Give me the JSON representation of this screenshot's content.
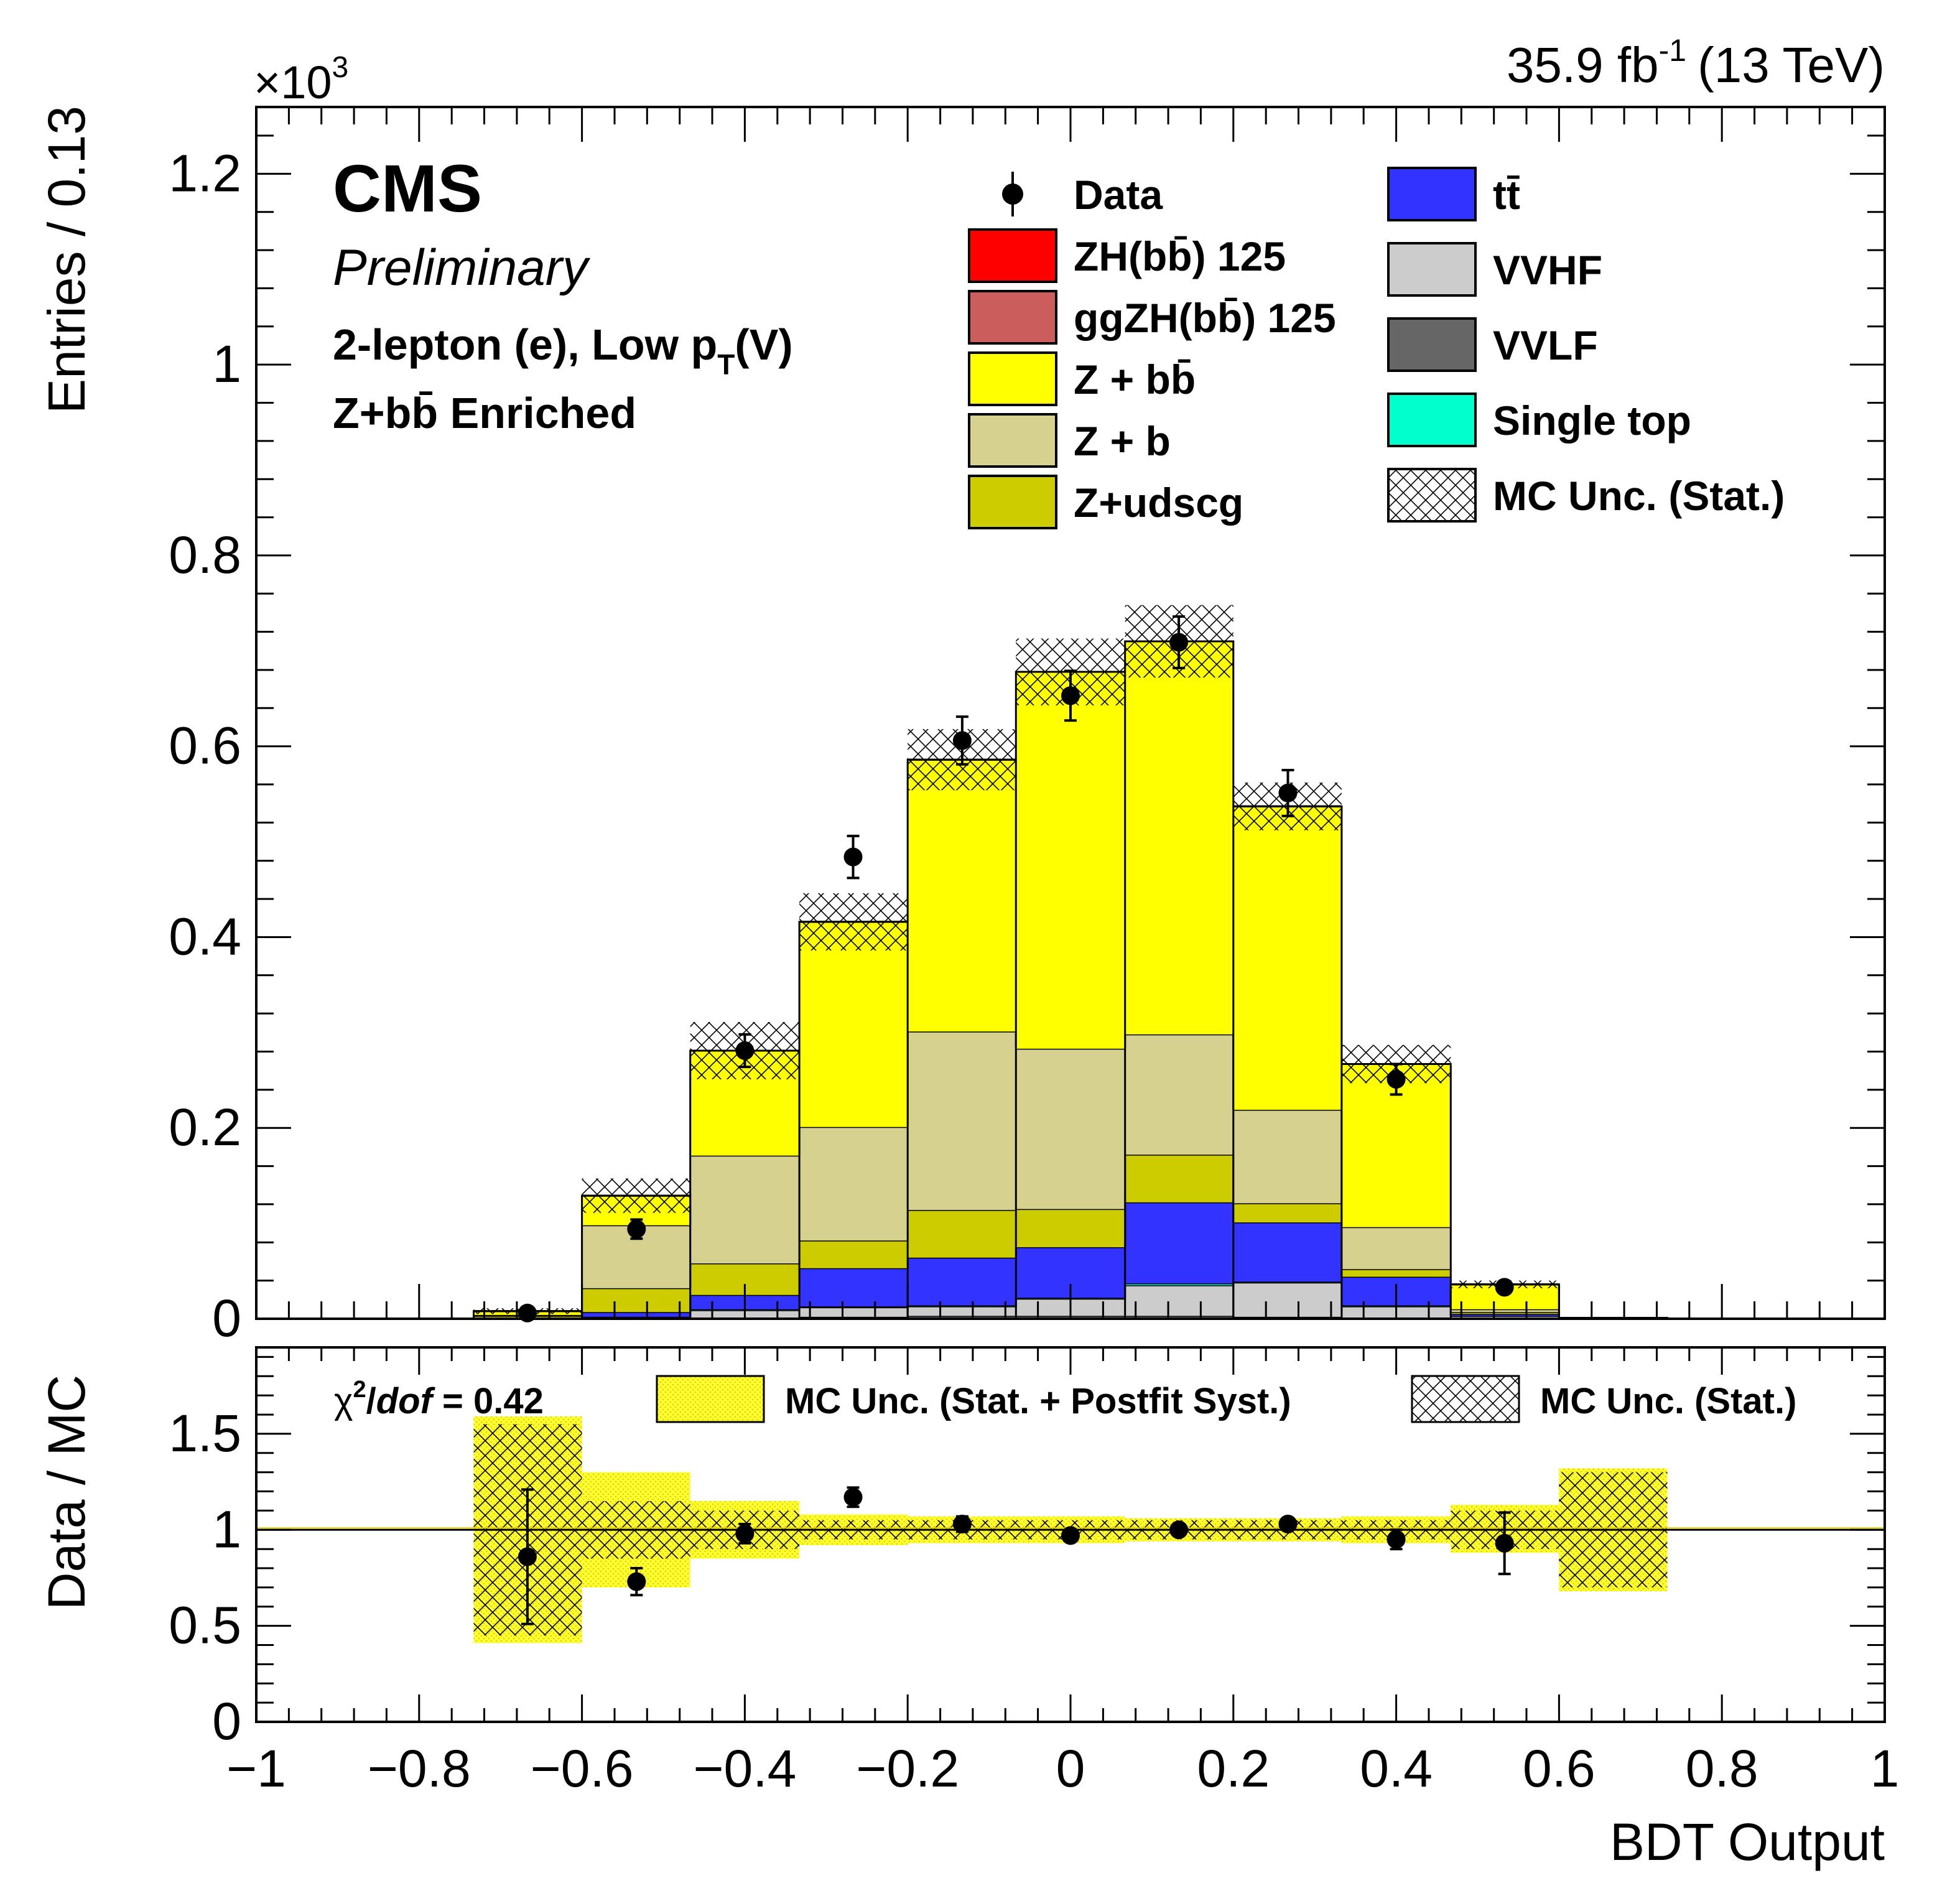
{
  "header": {
    "exponent_base": "×10",
    "exponent_power": "3",
    "lumi_value": "35.9 fb",
    "lumi_power": "-1",
    "lumi_energy": "(13 TeV)"
  },
  "labels": {
    "cms": "CMS",
    "preliminary": "Preliminary",
    "channel_main": "2-lepton (e), Low p",
    "channel_sub": "T",
    "channel_tail": "(V)",
    "region": "Z+bb̄ Enriched"
  },
  "legend": [
    {
      "label": "Data",
      "color": "#000000"
    },
    {
      "label": "ZH(bb̄) 125",
      "color": "#ff0000"
    },
    {
      "label": "ggZH(bb̄) 125",
      "color": "#cc5d5d"
    },
    {
      "label": "Z + bb̄",
      "color": "#ffff00"
    },
    {
      "label": "Z + b",
      "color": "#d6d18f"
    },
    {
      "label": "Z+udscg",
      "color": "#cccc00"
    },
    {
      "label": "tt̄",
      "color": "#3333ff"
    },
    {
      "label": "VVHF",
      "color": "#cccccc"
    },
    {
      "label": "VVLF",
      "color": "#666666"
    },
    {
      "label": "Single top",
      "color": "#00ffcc"
    },
    {
      "label": "MC Unc. (Stat.)",
      "color": "#ffffff"
    }
  ],
  "ratio_legend": {
    "chi2_sym": "χ",
    "chi2_pow": "2",
    "chi2_slash": "/",
    "chi2_dof": "dof",
    "chi2_value": " = 0.42",
    "band_syst": "MC Unc. (Stat. + Postfit Syst.)",
    "band_stat": "MC Unc. (Stat.)"
  },
  "chart_data": [
    {
      "type": "bar",
      "panel": "main",
      "stacked": true,
      "bin_edges": [
        -1,
        -0.867,
        -0.733,
        -0.6,
        -0.467,
        -0.333,
        -0.2,
        -0.067,
        0.067,
        0.2,
        0.333,
        0.467,
        0.6,
        0.733,
        0.867,
        1
      ],
      "ylabel": "Entries / 0.13",
      "xlabel": "BDT Output",
      "ylim": [
        0,
        1.27
      ],
      "y_scale_label": "×10^3",
      "yticks": [
        0,
        0.2,
        0.4,
        0.6,
        0.8,
        1,
        1.2
      ],
      "ytick_labels": [
        "0",
        "0.2",
        "0.4",
        "0.6",
        "0.8",
        "1",
        "1.2"
      ],
      "series": [
        {
          "name": "VVLF",
          "color": "#666666",
          "values": [
            0,
            0,
            0,
            0,
            0.001,
            0.002,
            0.003,
            0.003,
            0.003,
            0.002,
            0.001,
            0,
            0,
            0,
            0
          ]
        },
        {
          "name": "VVHF",
          "color": "#cccccc",
          "values": [
            0,
            0,
            0,
            0.002,
            0.008,
            0.01,
            0.01,
            0.018,
            0.032,
            0.036,
            0.012,
            0.003,
            0,
            0,
            0
          ]
        },
        {
          "name": "Single top",
          "color": "#00ffcc",
          "values": [
            0,
            0,
            0,
            0,
            0.001,
            0.001,
            0.001,
            0.001,
            0.002,
            0.001,
            0.001,
            0,
            0,
            0,
            0
          ]
        },
        {
          "name": "tt̄",
          "color": "#3333ff",
          "values": [
            0,
            0,
            0,
            0.005,
            0.015,
            0.04,
            0.05,
            0.053,
            0.085,
            0.062,
            0.03,
            0.002,
            0,
            0,
            0
          ]
        },
        {
          "name": "Z+udscg",
          "color": "#cccc00",
          "values": [
            0,
            0,
            0.003,
            0.025,
            0.033,
            0.029,
            0.05,
            0.04,
            0.05,
            0.02,
            0.008,
            0.002,
            0,
            0,
            0
          ]
        },
        {
          "name": "Z + b",
          "color": "#d6d18f",
          "values": [
            0,
            0,
            0.001,
            0.066,
            0.113,
            0.119,
            0.187,
            0.168,
            0.126,
            0.098,
            0.044,
            0.003,
            0,
            0,
            0
          ]
        },
        {
          "name": "Z + bb̄",
          "color": "#ffff00",
          "values": [
            0,
            0,
            0.004,
            0.031,
            0.11,
            0.215,
            0.285,
            0.395,
            0.412,
            0.318,
            0.171,
            0.026,
            0.001,
            0,
            0
          ]
        },
        {
          "name": "ggZH(bb̄) 125",
          "color": "#cc5d5d",
          "values": [
            0,
            0,
            0,
            0,
            0,
            0,
            0,
            0,
            0,
            0,
            0,
            0,
            0,
            0,
            0
          ]
        },
        {
          "name": "ZH(bb̄) 125",
          "color": "#ff0000",
          "values": [
            0,
            0,
            0,
            0,
            0,
            0,
            0,
            0,
            0,
            0,
            0,
            0,
            0,
            0,
            0
          ]
        }
      ],
      "mc_stat_unc": [
        0,
        0,
        0.003,
        0.018,
        0.03,
        0.03,
        0.032,
        0.035,
        0.038,
        0.025,
        0.02,
        0.004,
        0,
        0,
        0
      ],
      "data": {
        "x": [
          -0.667,
          -0.533,
          -0.4,
          -0.267,
          -0.133,
          0,
          0.133,
          0.267,
          0.4,
          0.533
        ],
        "y": [
          0.006,
          0.094,
          0.281,
          0.484,
          0.606,
          0.653,
          0.709,
          0.551,
          0.251,
          0.033
        ],
        "yerr": [
          0.003,
          0.01,
          0.017,
          0.022,
          0.025,
          0.026,
          0.027,
          0.024,
          0.016,
          0.006
        ]
      }
    },
    {
      "type": "scatter",
      "panel": "ratio",
      "ylabel": "Data / MC",
      "xlabel": "BDT Output",
      "ylim": [
        0,
        1.95
      ],
      "yticks": [
        0,
        0.5,
        1,
        1.5
      ],
      "ytick_labels": [
        "0",
        "0.5",
        "1",
        "1.5"
      ],
      "xticks": [
        -1,
        -0.8,
        -0.6,
        -0.4,
        -0.2,
        0,
        0.2,
        0.4,
        0.6,
        0.8,
        1
      ],
      "xtick_labels": [
        "−1",
        "−0.8",
        "−0.6",
        "−0.4",
        "−0.2",
        "0",
        "0.2",
        "0.4",
        "0.6",
        "0.8",
        "1"
      ],
      "reference_line": 1,
      "band_edges": [
        -0.733,
        -0.6,
        -0.467,
        -0.333,
        -0.2,
        -0.067,
        0.067,
        0.2,
        0.333,
        0.467,
        0.6,
        0.733
      ],
      "syst_band": {
        "lo": [
          0.41,
          0.7,
          0.85,
          0.92,
          0.93,
          0.93,
          0.94,
          0.94,
          0.93,
          0.88,
          0.68
        ],
        "hi": [
          1.59,
          1.3,
          1.15,
          1.08,
          1.07,
          1.07,
          1.06,
          1.06,
          1.07,
          1.13,
          1.32
        ]
      },
      "stat_band": {
        "lo": [
          0.45,
          0.85,
          0.9,
          0.95,
          0.95,
          0.95,
          0.95,
          0.95,
          0.95,
          0.9,
          0.7
        ],
        "hi": [
          1.55,
          1.15,
          1.1,
          1.05,
          1.05,
          1.05,
          1.05,
          1.05,
          1.05,
          1.1,
          1.3
        ]
      },
      "data": {
        "x": [
          -0.667,
          -0.533,
          -0.4,
          -0.267,
          -0.133,
          0,
          0.133,
          0.267,
          0.4,
          0.533
        ],
        "y": [
          0.86,
          0.73,
          0.98,
          1.17,
          1.03,
          0.97,
          1.0,
          1.03,
          0.95,
          0.93
        ],
        "yerr": [
          0.35,
          0.07,
          0.05,
          0.05,
          0.04,
          0.03,
          0.03,
          0.03,
          0.05,
          0.16
        ]
      }
    }
  ]
}
